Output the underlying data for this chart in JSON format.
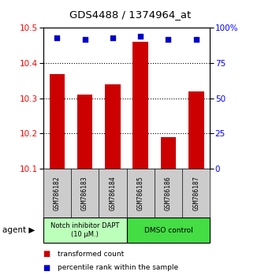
{
  "title": "GDS4488 / 1374964_at",
  "samples": [
    "GSM786182",
    "GSM786183",
    "GSM786184",
    "GSM786185",
    "GSM786186",
    "GSM786187"
  ],
  "red_values": [
    10.37,
    10.31,
    10.34,
    10.46,
    10.19,
    10.32
  ],
  "blue_values": [
    93,
    92,
    93,
    94,
    92,
    92
  ],
  "ylim_left": [
    10.1,
    10.5
  ],
  "ylim_right": [
    0,
    100
  ],
  "yticks_left": [
    10.1,
    10.2,
    10.3,
    10.4,
    10.5
  ],
  "yticks_right": [
    0,
    25,
    50,
    75,
    100
  ],
  "ytick_labels_right": [
    "0",
    "25",
    "50",
    "75",
    "100%"
  ],
  "bar_color": "#cc0000",
  "dot_color": "#0000cc",
  "group1_label": "Notch inhibitor DAPT\n(10 μM.)",
  "group2_label": "DMSO control",
  "group1_color": "#bbffbb",
  "group2_color": "#44dd44",
  "legend1": "transformed count",
  "legend2": "percentile rank within the sample",
  "bar_bottom": 10.1,
  "label_bg": "#cccccc",
  "fig_width": 3.31,
  "fig_height": 3.54
}
